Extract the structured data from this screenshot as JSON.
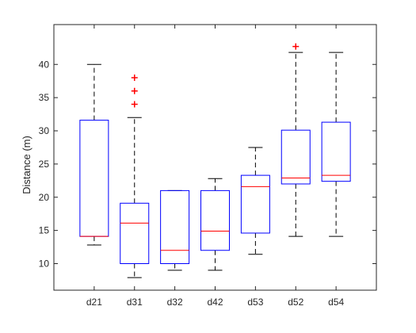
{
  "chart_data": {
    "type": "box",
    "title": "",
    "xlabel": "",
    "ylabel": "Distance (m)",
    "ylim": [
      6,
      46
    ],
    "yticks": [
      10,
      15,
      20,
      25,
      30,
      35,
      40
    ],
    "grid": false,
    "colors": {
      "box": "#0000ff",
      "median": "#ff0000",
      "whisker": "#000000",
      "outlier": "#ff0000"
    },
    "categories": [
      "d21",
      "d31",
      "d32",
      "d42",
      "d53",
      "d52",
      "d54"
    ],
    "boxes": [
      {
        "category": "d21",
        "whisker_low": 12.8,
        "q1": 14.1,
        "median": 14.1,
        "q3": 31.6,
        "whisker_high": 40.0,
        "outliers": []
      },
      {
        "category": "d31",
        "whisker_low": 7.9,
        "q1": 10.0,
        "median": 16.1,
        "q3": 19.1,
        "whisker_high": 32.0,
        "outliers": [
          34.0,
          36.0,
          38.0
        ]
      },
      {
        "category": "d32",
        "whisker_low": 9.0,
        "q1": 10.0,
        "median": 12.0,
        "q3": 21.0,
        "whisker_high": 21.0,
        "outliers": []
      },
      {
        "category": "d42",
        "whisker_low": 9.0,
        "q1": 12.0,
        "median": 14.9,
        "q3": 21.0,
        "whisker_high": 22.8,
        "outliers": []
      },
      {
        "category": "d53",
        "whisker_low": 11.4,
        "q1": 14.6,
        "median": 21.6,
        "q3": 23.3,
        "whisker_high": 27.5,
        "outliers": []
      },
      {
        "category": "d52",
        "whisker_low": 14.1,
        "q1": 22.0,
        "median": 22.9,
        "q3": 30.1,
        "whisker_high": 41.8,
        "outliers": [
          42.7
        ]
      },
      {
        "category": "d54",
        "whisker_low": 14.1,
        "q1": 22.4,
        "median": 23.3,
        "q3": 31.3,
        "whisker_high": 41.8,
        "outliers": []
      }
    ]
  }
}
